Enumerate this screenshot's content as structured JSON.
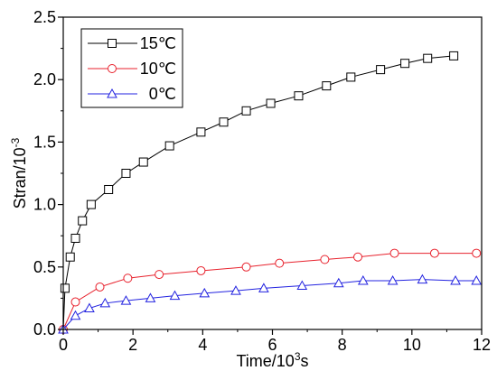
{
  "chart_data": {
    "type": "line",
    "title": "",
    "xlabel": {
      "base": "Time/10",
      "sup": "3",
      "suffix": "s"
    },
    "ylabel": {
      "base": "Stran/10",
      "sup": "-3"
    },
    "xlim": [
      0,
      12
    ],
    "ylim": [
      0,
      2.5
    ],
    "x_ticks": [
      0,
      2,
      4,
      6,
      8,
      10,
      12
    ],
    "y_ticks": [
      0.0,
      0.5,
      1.0,
      1.5,
      2.0,
      2.5
    ],
    "x_tick_labels": [
      "0",
      "2",
      "4",
      "6",
      "8",
      "10",
      "12"
    ],
    "y_tick_labels": [
      "0.0",
      "0.5",
      "1.0",
      "1.5",
      "2.0",
      "2.5"
    ],
    "grid": false,
    "legend_position": "top-left",
    "series": [
      {
        "name": "15℃",
        "color": "#000000",
        "marker": "square",
        "x": [
          0.05,
          0.2,
          0.35,
          0.55,
          0.8,
          1.3,
          1.8,
          2.3,
          3.05,
          3.95,
          4.6,
          5.25,
          5.95,
          6.75,
          7.55,
          8.25,
          9.1,
          9.8,
          10.45,
          11.2
        ],
        "y": [
          0.33,
          0.58,
          0.73,
          0.87,
          1.0,
          1.12,
          1.25,
          1.34,
          1.47,
          1.58,
          1.66,
          1.75,
          1.81,
          1.87,
          1.95,
          2.02,
          2.08,
          2.13,
          2.17,
          2.19
        ]
      },
      {
        "name": "10℃",
        "color": "#e8222d",
        "marker": "circle",
        "x": [
          0.0,
          0.35,
          1.05,
          1.85,
          2.75,
          3.95,
          5.25,
          6.2,
          7.5,
          8.45,
          9.5,
          10.65,
          11.85
        ],
        "y": [
          0.0,
          0.22,
          0.34,
          0.41,
          0.44,
          0.47,
          0.5,
          0.53,
          0.56,
          0.58,
          0.61,
          0.61,
          0.61
        ]
      },
      {
        "name": "0℃",
        "color": "#2323e0",
        "marker": "triangle",
        "x": [
          0.0,
          0.35,
          0.75,
          1.2,
          1.8,
          2.5,
          3.2,
          4.05,
          4.95,
          5.75,
          6.85,
          7.9,
          8.6,
          9.45,
          10.3,
          11.25,
          11.85
        ],
        "y": [
          0.0,
          0.11,
          0.17,
          0.21,
          0.23,
          0.25,
          0.27,
          0.29,
          0.31,
          0.33,
          0.35,
          0.37,
          0.39,
          0.39,
          0.4,
          0.39,
          0.39
        ]
      }
    ]
  }
}
